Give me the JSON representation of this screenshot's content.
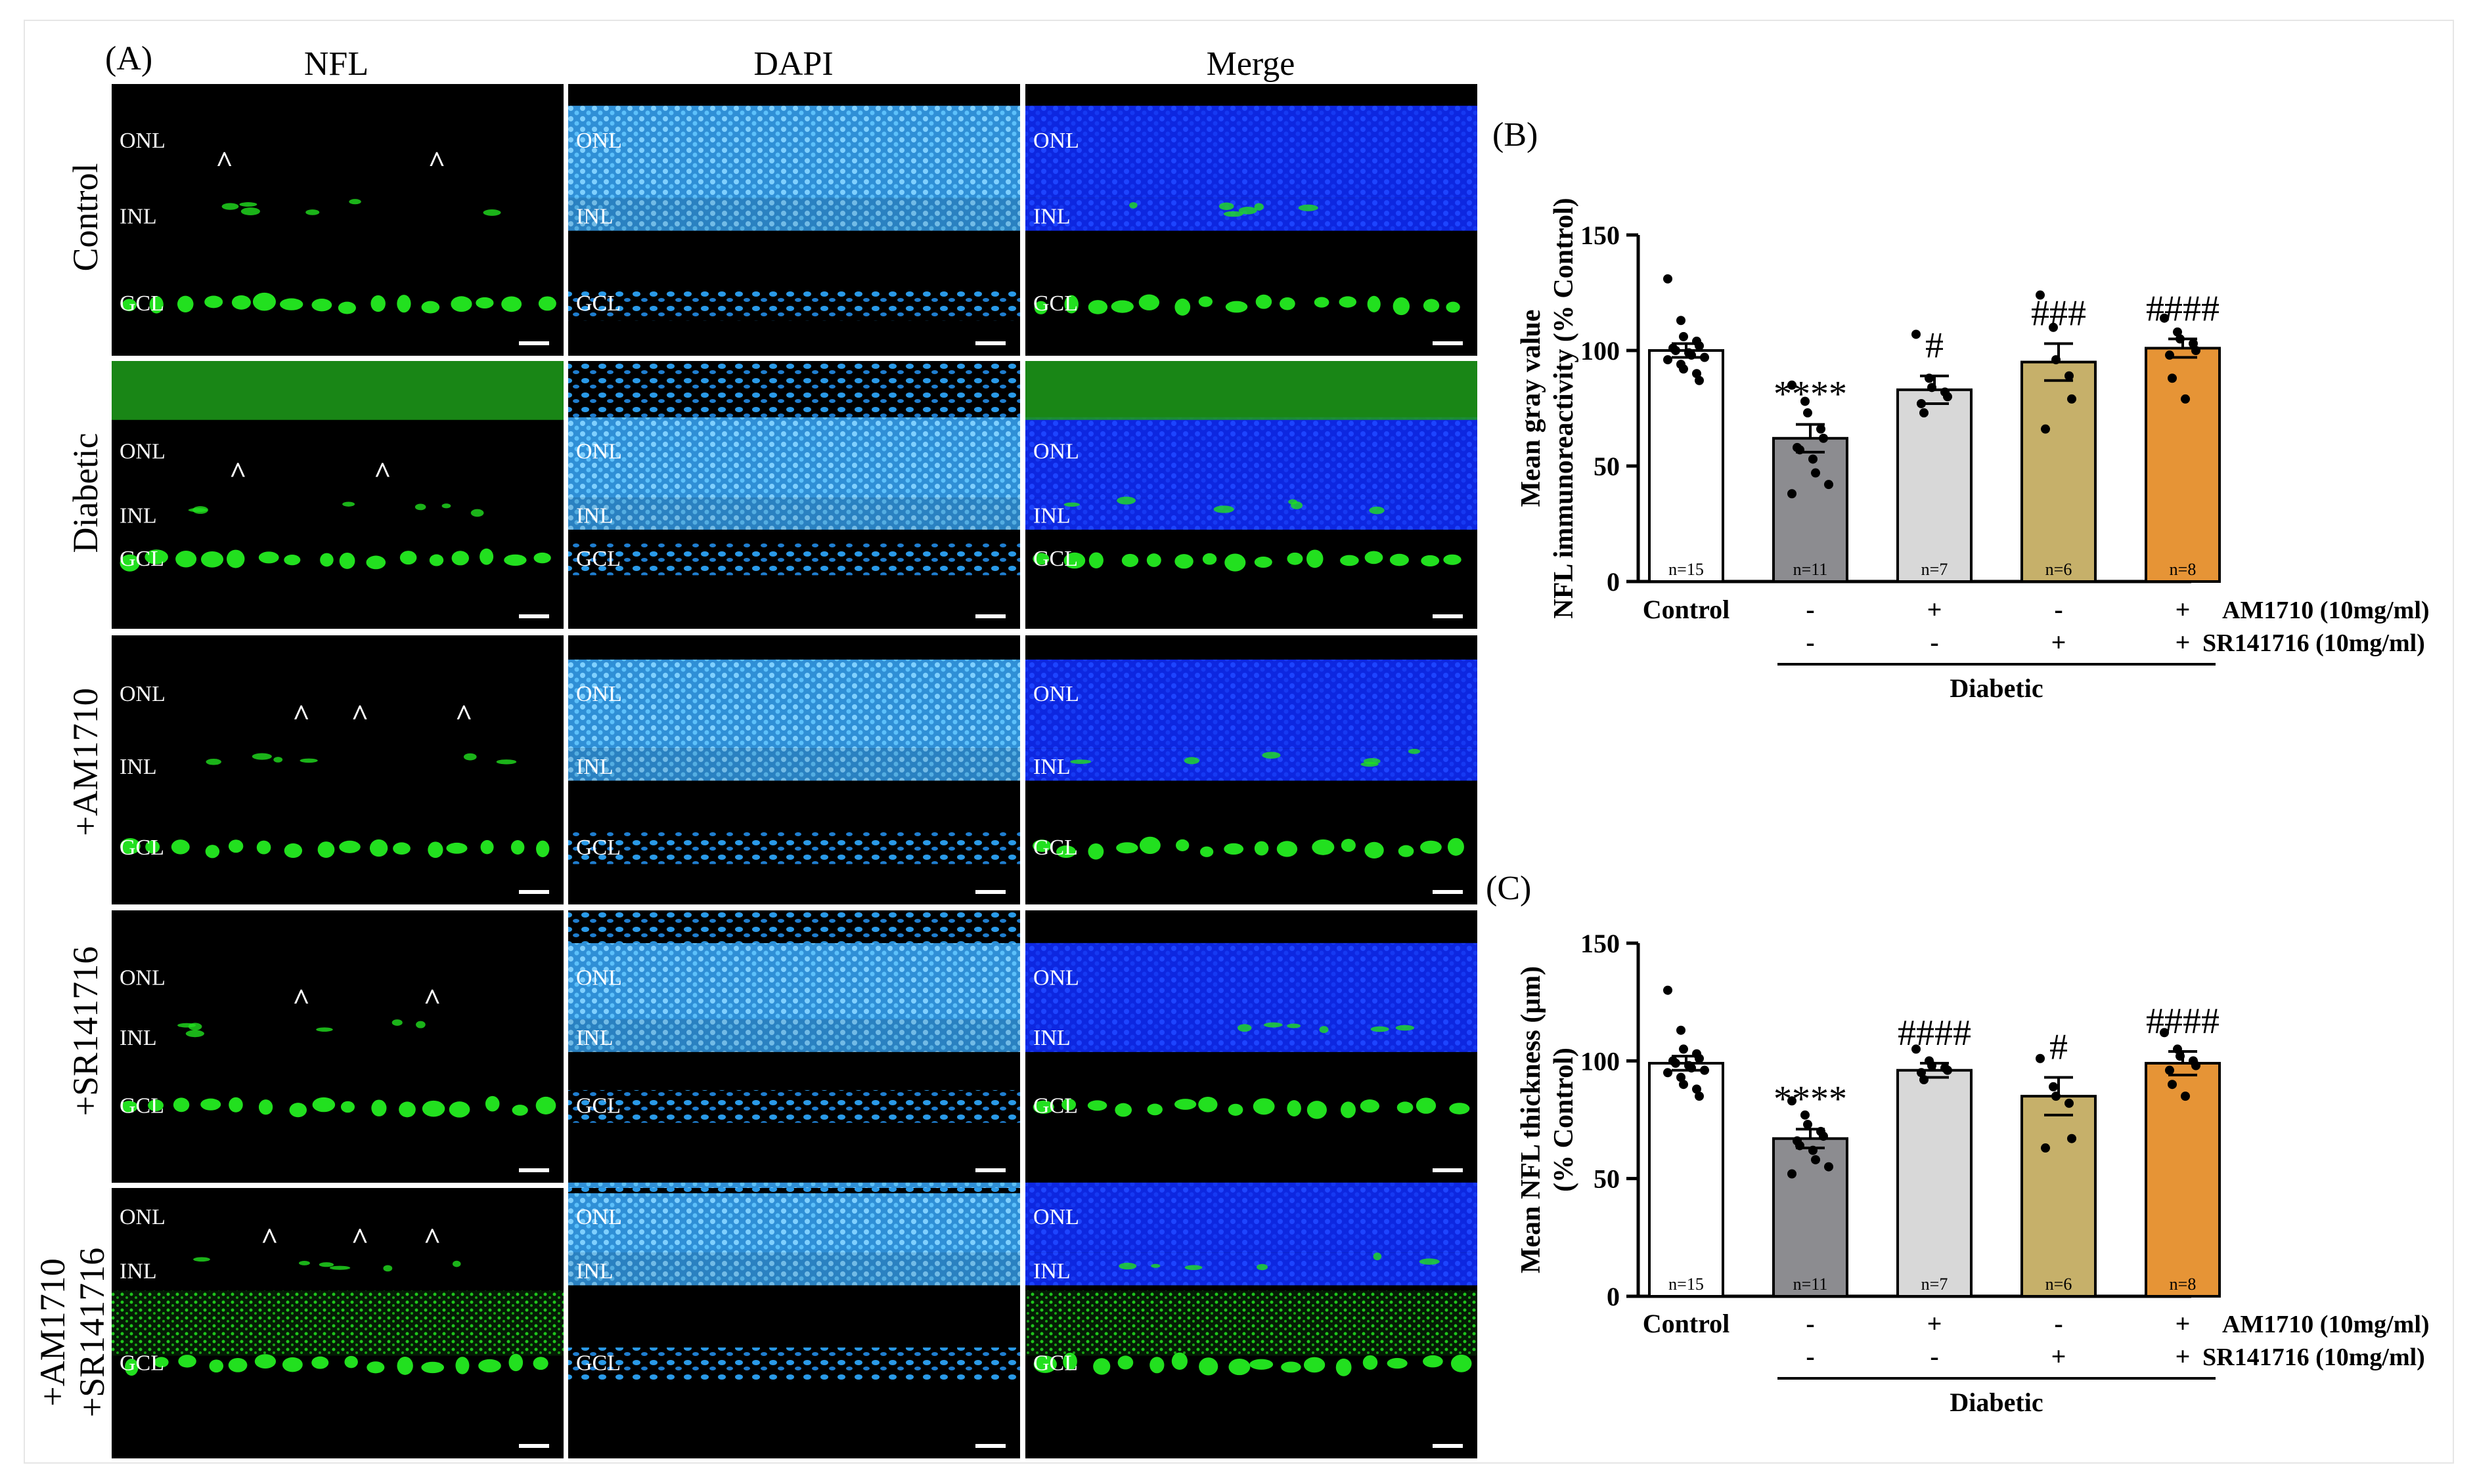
{
  "panel_labels": {
    "a": "(A)",
    "b": "(B)",
    "c": "(C)"
  },
  "columns": [
    "NFL",
    "DAPI",
    "Merge"
  ],
  "rows": [
    {
      "label_line1": "Control",
      "label_line2": ""
    },
    {
      "label_line1": "Diabetic",
      "label_line2": ""
    },
    {
      "label_line1": "+AM1710",
      "label_line2": ""
    },
    {
      "label_line1": "+SR141716",
      "label_line2": ""
    },
    {
      "label_line1": "+AM1710",
      "label_line2": "+SR141716"
    }
  ],
  "layer_labels": {
    "onl": "ONL",
    "inl": "INL",
    "gcl": "GCL",
    "arrow": "^"
  },
  "colors": {
    "nfl_green": "#22e01f",
    "dapi_cyan": "#35a7ef",
    "merge_blue": "#1030ff",
    "bar_control": "#ffffff",
    "bar_diabetic": "#8c8c90",
    "bar_am": "#d8d8d8",
    "bar_sr": "#c6b06a",
    "bar_combo": "#e69436"
  },
  "treatment_rows": {
    "control_label": "Control",
    "am_label": "AM1710 (10mg/ml)",
    "sr_label": "SR141716 (10mg/ml)",
    "am_signs": [
      "-",
      "+",
      "-",
      "+"
    ],
    "sr_signs": [
      "-",
      "-",
      "+",
      "+"
    ],
    "group_label": "Diabetic"
  },
  "chart_data": [
    {
      "type": "bar",
      "panel": "(B)",
      "categories": [
        "Control",
        "Diabetic",
        "Diabetic+AM1710",
        "Diabetic+SR141716",
        "Diabetic+AM1710+SR141716"
      ],
      "values": [
        100,
        62,
        83,
        95,
        101
      ],
      "errors": [
        3,
        6,
        6,
        8,
        4
      ],
      "n_labels": [
        "n=15",
        "n=11",
        "n=7",
        "n=6",
        "n=8"
      ],
      "significance": [
        "",
        "****",
        "#",
        "###",
        "####"
      ],
      "points": [
        [
          131,
          113,
          106,
          104,
          102,
          101,
          100,
          99,
          98,
          97,
          96,
          94,
          92,
          90,
          87
        ],
        [
          85,
          78,
          73,
          66,
          62,
          58,
          57,
          53,
          47,
          42,
          38
        ],
        [
          107,
          88,
          84,
          82,
          80,
          77,
          73
        ],
        [
          124,
          110,
          96,
          89,
          79,
          66
        ],
        [
          114,
          108,
          105,
          103,
          100,
          98,
          88,
          79
        ]
      ],
      "ylabel": "Mean gray value\nNFL immunoreactivity (% Control)",
      "ylim": [
        0,
        150
      ],
      "yticks": [
        0,
        50,
        100,
        150
      ]
    },
    {
      "type": "bar",
      "panel": "(C)",
      "categories": [
        "Control",
        "Diabetic",
        "Diabetic+AM1710",
        "Diabetic+SR141716",
        "Diabetic+AM1710+SR141716"
      ],
      "values": [
        99,
        67,
        96,
        85,
        99
      ],
      "errors": [
        3,
        4,
        3,
        8,
        5
      ],
      "n_labels": [
        "n=15",
        "n=11",
        "n=7",
        "n=6",
        "n=8"
      ],
      "significance": [
        "",
        "****",
        "####",
        "#",
        "####"
      ],
      "points": [
        [
          130,
          113,
          105,
          103,
          101,
          100,
          99,
          98,
          97,
          96,
          95,
          93,
          90,
          88,
          85
        ],
        [
          83,
          77,
          73,
          70,
          68,
          66,
          64,
          62,
          58,
          55,
          52
        ],
        [
          105,
          100,
          98,
          97,
          96,
          95,
          92
        ],
        [
          101,
          89,
          85,
          82,
          67,
          63
        ],
        [
          112,
          105,
          102,
          100,
          98,
          96,
          90,
          85
        ]
      ],
      "ylabel": "Mean NFL thickness (μm)\n(% Control)",
      "ylim": [
        0,
        150
      ],
      "yticks": [
        0,
        50,
        100,
        150
      ]
    }
  ]
}
